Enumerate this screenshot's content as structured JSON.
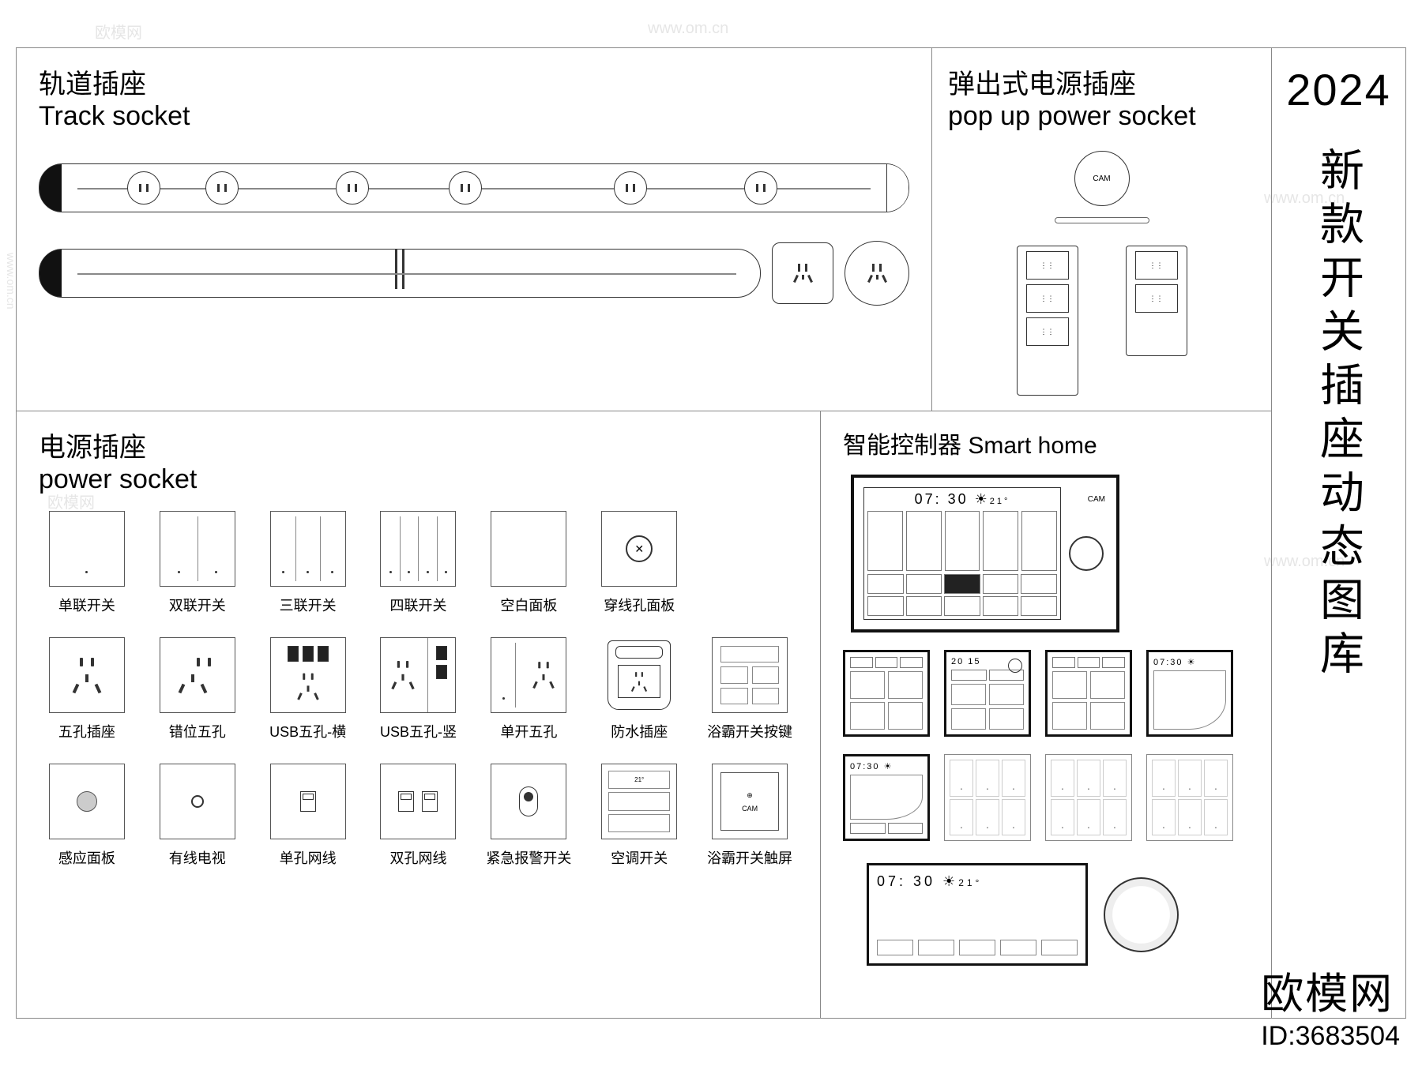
{
  "colors": {
    "border": "#888888",
    "stroke": "#333333",
    "black": "#111111",
    "bg": "#ffffff",
    "faint": "#e6e6e6"
  },
  "right": {
    "year": "2024",
    "vertical_title": "新款开关插座动态图库"
  },
  "track": {
    "title_zh": "轨道插座",
    "title_en": "Track socket",
    "strip1_outlet_positions_pct": [
      12,
      21,
      36,
      49,
      68,
      83
    ],
    "strip2_outlet_positions_pct": [
      36,
      49,
      59,
      70,
      80
    ]
  },
  "popup": {
    "title_zh": "弹出式电源插座",
    "title_en": "pop up power socket",
    "cap_label": "CAM",
    "tall_cells": 3,
    "short_cells": 2
  },
  "power": {
    "title_zh": "电源插座",
    "title_en": "power socket",
    "items": [
      {
        "kind": "switch",
        "gangs": 1,
        "label": "单联开关"
      },
      {
        "kind": "switch",
        "gangs": 2,
        "label": "双联开关"
      },
      {
        "kind": "switch",
        "gangs": 3,
        "label": "三联开关"
      },
      {
        "kind": "switch",
        "gangs": 4,
        "label": "四联开关"
      },
      {
        "kind": "blank",
        "label": "空白面板"
      },
      {
        "kind": "grommet",
        "label": "穿线孔面板"
      },
      {
        "kind": "spacer"
      },
      {
        "kind": "fivehole",
        "label": "五孔插座"
      },
      {
        "kind": "fivehole_offset",
        "label": "错位五孔"
      },
      {
        "kind": "usb_h",
        "label": "USB五孔-横"
      },
      {
        "kind": "usb_v",
        "label": "USB五孔-竖"
      },
      {
        "kind": "switch_five",
        "label": "单开五孔"
      },
      {
        "kind": "water",
        "label": "防水插座"
      },
      {
        "kind": "bath_keys",
        "label": "浴霸开关按键"
      },
      {
        "kind": "sensor",
        "label": "感应面板"
      },
      {
        "kind": "tv",
        "label": "有线电视"
      },
      {
        "kind": "rj_single",
        "label": "单孔网线"
      },
      {
        "kind": "rj_double",
        "label": "双孔网线"
      },
      {
        "kind": "emergency",
        "label": "紧急报警开关"
      },
      {
        "kind": "ac",
        "ac_text": "21°",
        "label": "空调开关"
      },
      {
        "kind": "bath_touch",
        "touch_text": "CAM",
        "label": "浴霸开关触屏"
      }
    ]
  },
  "smart": {
    "title": "智能控制器 Smart home",
    "big_time": "07: 30",
    "big_temp": "21°",
    "cam_label": "CAM",
    "small_panels_row1": [
      {
        "style": "a",
        "time": ""
      },
      {
        "style": "b",
        "time": "20\n15"
      },
      {
        "style": "c",
        "time": ""
      },
      {
        "style": "d",
        "time": "07:30"
      }
    ],
    "small_panels_row2": [
      {
        "style": "e",
        "time": "07:30"
      },
      {
        "style": "keys"
      },
      {
        "style": "keys"
      },
      {
        "style": "keys"
      }
    ],
    "bottom_time": "07: 30",
    "bottom_temp": "21°"
  },
  "watermark": {
    "brand": "欧模网",
    "id_label": "ID:3683504",
    "faint_text": "欧模网",
    "faint_url": "www.om.cn"
  }
}
